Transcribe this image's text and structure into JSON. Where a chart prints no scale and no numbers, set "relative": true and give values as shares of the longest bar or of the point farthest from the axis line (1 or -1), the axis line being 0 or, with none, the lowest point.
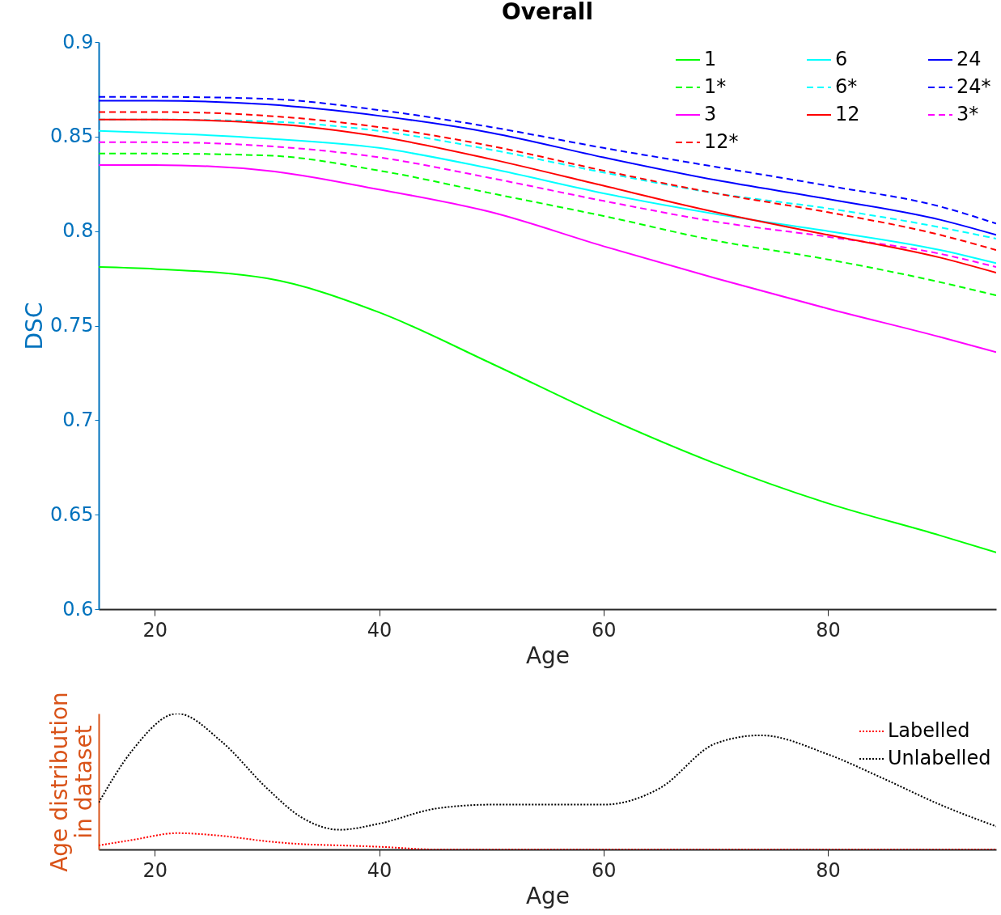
{
  "chart_data": [
    {
      "type": "line",
      "title": "Overall",
      "xlabel": "Age",
      "ylabel": "DSC",
      "x": [
        15,
        20,
        30,
        40,
        50,
        60,
        70,
        80,
        90,
        95
      ],
      "xlim": [
        15,
        95
      ],
      "xticks": [
        20,
        40,
        60,
        80
      ],
      "ylim": [
        0.6,
        0.9
      ],
      "yticks": [
        0.6,
        0.65,
        0.7,
        0.75,
        0.8,
        0.85,
        0.9
      ],
      "legend": "top right",
      "series": [
        {
          "name": "1",
          "color": "#00ff00",
          "line_style": "solid",
          "values": [
            0.781,
            0.78,
            0.775,
            0.757,
            0.73,
            0.702,
            0.677,
            0.656,
            0.639,
            0.63
          ]
        },
        {
          "name": "1*",
          "color": "#00ff00",
          "line_style": "dashed",
          "values": [
            0.841,
            0.841,
            0.84,
            0.832,
            0.82,
            0.808,
            0.795,
            0.785,
            0.773,
            0.766
          ]
        },
        {
          "name": "3",
          "color": "#ff00ff",
          "line_style": "solid",
          "values": [
            0.835,
            0.835,
            0.832,
            0.822,
            0.81,
            0.792,
            0.775,
            0.759,
            0.744,
            0.736
          ]
        },
        {
          "name": "3*",
          "color": "#ff00ff",
          "line_style": "dashed",
          "values": [
            0.847,
            0.847,
            0.845,
            0.839,
            0.828,
            0.816,
            0.805,
            0.797,
            0.788,
            0.781
          ]
        },
        {
          "name": "6",
          "color": "#00ffff",
          "line_style": "solid",
          "values": [
            0.853,
            0.852,
            0.849,
            0.844,
            0.833,
            0.82,
            0.809,
            0.8,
            0.79,
            0.783
          ]
        },
        {
          "name": "6*",
          "color": "#00ffff",
          "line_style": "dashed",
          "values": [
            0.859,
            0.859,
            0.858,
            0.853,
            0.843,
            0.831,
            0.82,
            0.812,
            0.802,
            0.796
          ]
        },
        {
          "name": "12",
          "color": "#ff0000",
          "line_style": "solid",
          "values": [
            0.859,
            0.859,
            0.857,
            0.85,
            0.838,
            0.824,
            0.81,
            0.798,
            0.786,
            0.778
          ]
        },
        {
          "name": "12*",
          "color": "#ff0000",
          "line_style": "dashed",
          "values": [
            0.863,
            0.863,
            0.861,
            0.855,
            0.845,
            0.832,
            0.82,
            0.81,
            0.798,
            0.79
          ]
        },
        {
          "name": "24",
          "color": "#0000ff",
          "line_style": "solid",
          "values": [
            0.869,
            0.869,
            0.867,
            0.861,
            0.852,
            0.839,
            0.827,
            0.817,
            0.806,
            0.798
          ]
        },
        {
          "name": "24*",
          "color": "#0000ff",
          "line_style": "dashed",
          "values": [
            0.871,
            0.871,
            0.87,
            0.864,
            0.855,
            0.844,
            0.834,
            0.824,
            0.813,
            0.804
          ]
        }
      ]
    },
    {
      "type": "line",
      "xlabel": "Age",
      "ylabel": "Age distribution\nin dataset",
      "relative": true,
      "x": [
        15,
        18,
        22,
        26,
        30,
        33,
        36.5,
        40,
        45,
        50,
        55,
        60,
        65,
        70,
        74,
        80,
        85,
        90,
        95
      ],
      "xlim": [
        15,
        95
      ],
      "xticks": [
        20,
        40,
        60,
        80
      ],
      "legend": "top right",
      "series": [
        {
          "name": "Labelled",
          "color": "#ff0000",
          "line_style": "dotted",
          "values": [
            0.03,
            0.07,
            0.12,
            0.1,
            0.06,
            0.04,
            0.03,
            0.02,
            0,
            0,
            0,
            0,
            0,
            0,
            0,
            0,
            0,
            0,
            0
          ]
        },
        {
          "name": "Unlabelled",
          "color": "#000000",
          "line_style": "dotted",
          "values": [
            0.345,
            0.73,
            1.0,
            0.79,
            0.45,
            0.24,
            0.145,
            0.19,
            0.3,
            0.33,
            0.33,
            0.33,
            0.45,
            0.78,
            0.84,
            0.7,
            0.52,
            0.33,
            0.17
          ]
        }
      ]
    }
  ]
}
